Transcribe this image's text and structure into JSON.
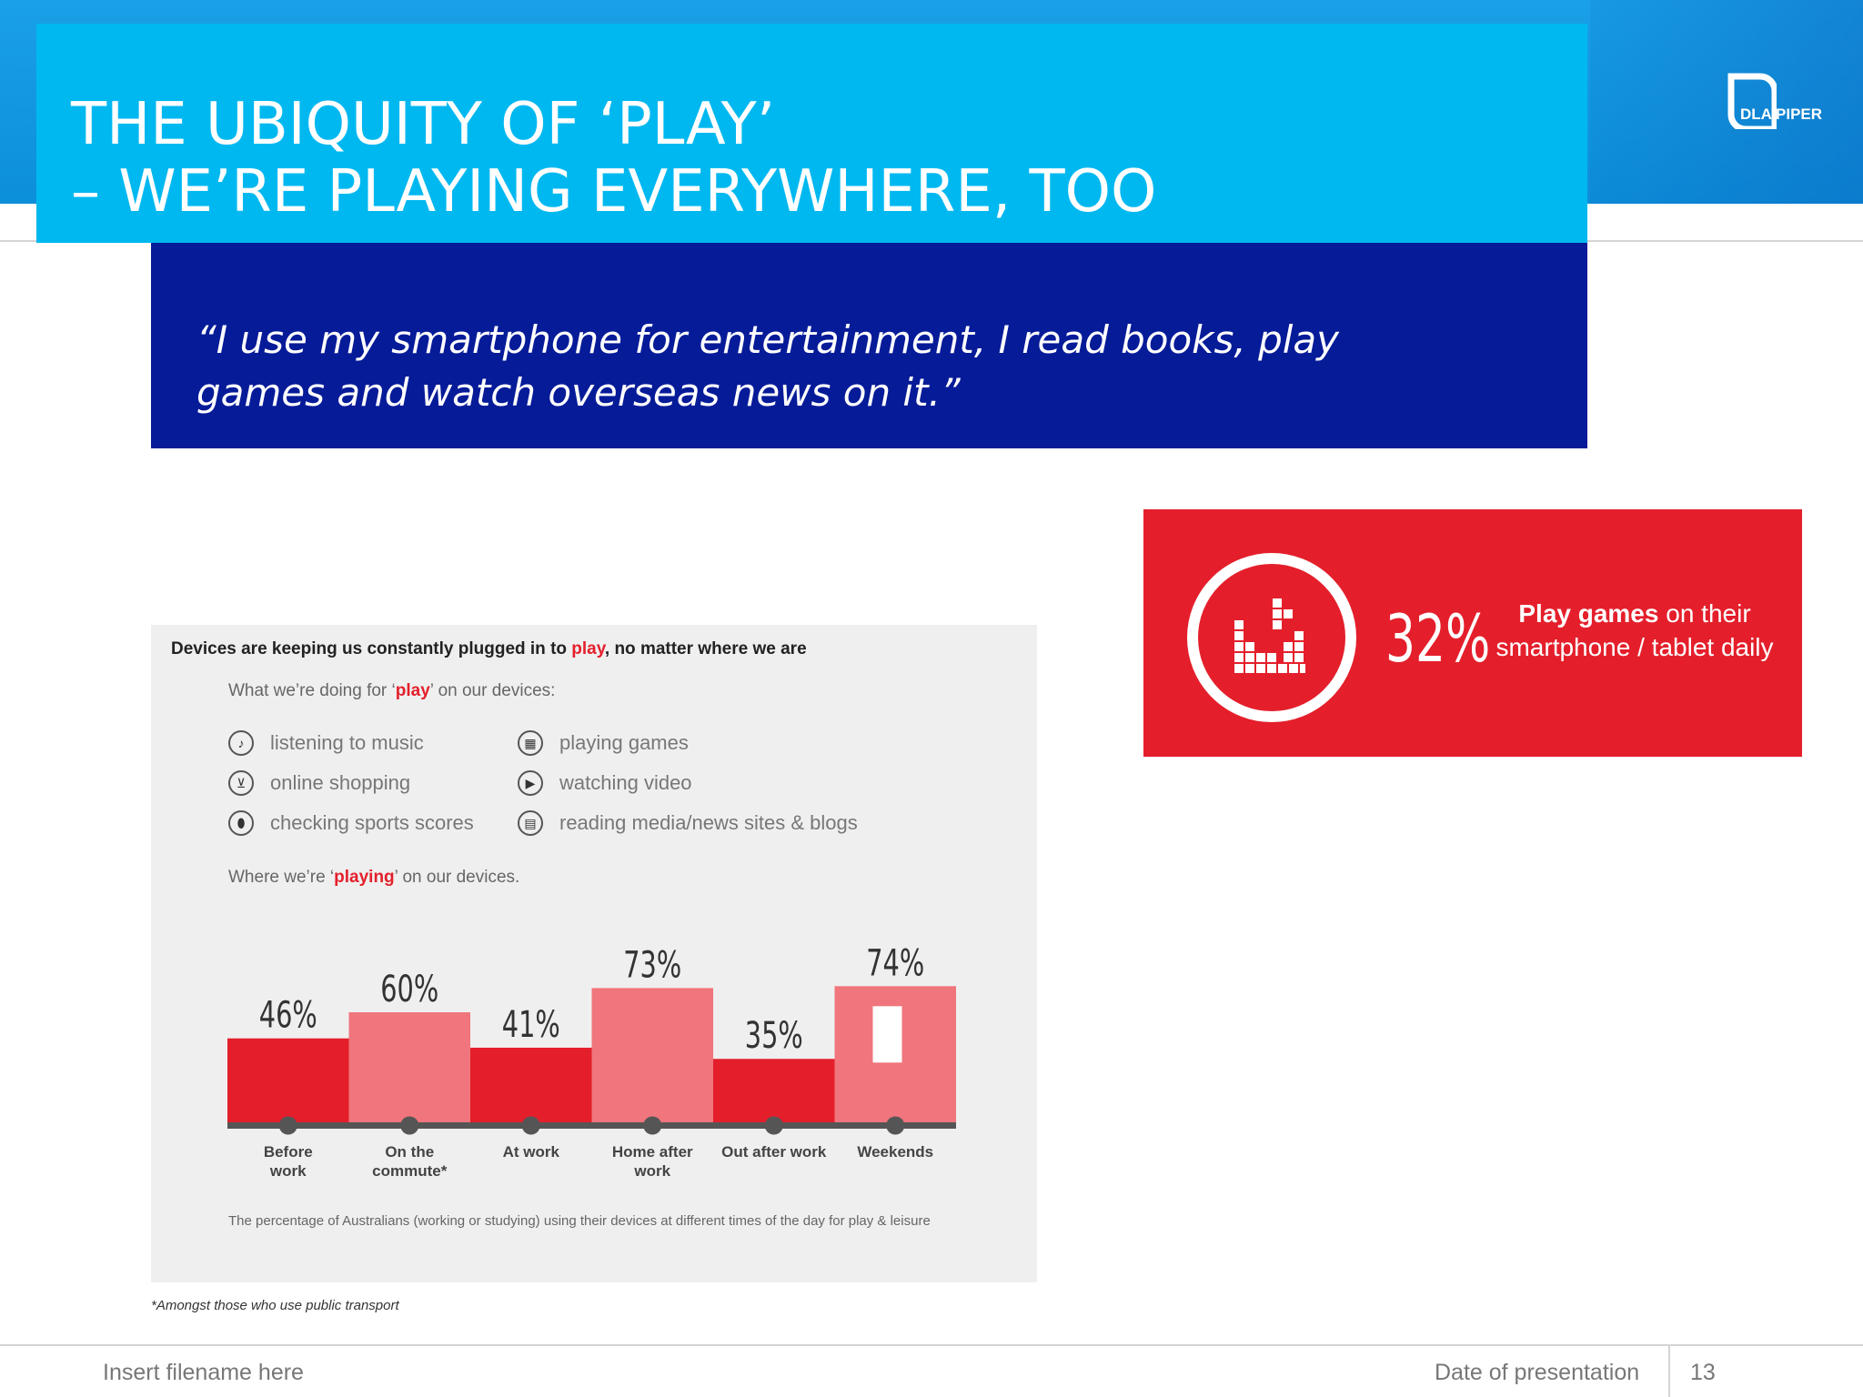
{
  "slide": {
    "title_line1": "THE UBIQUITY OF ‘PLAY’",
    "title_line2": "– WE’RE PLAYING EVERYWHERE, TOO",
    "logo_text": "DLA PIPER",
    "quote": "“I use my smartphone for entertainment, I read books, play games and watch overseas news on it.”",
    "stat": {
      "percent": "32%",
      "desc_bold": "Play games",
      "desc_rest": " on their smartphone / tablet daily"
    },
    "panel": {
      "heading_pre": "Devices are keeping us constantly plugged in to ",
      "heading_red": "play",
      "heading_post": ", no matter where we are",
      "doing_pre": "What we’re doing for ‘",
      "doing_red": "play",
      "doing_post": "’ on our devices:",
      "where_pre": "Where we’re ‘",
      "where_red": "playing",
      "where_post": "’ on our devices.",
      "activities": [
        {
          "label": "listening to music",
          "icon": "music-note-icon"
        },
        {
          "label": "online shopping",
          "icon": "shopping-cart-icon"
        },
        {
          "label": "checking sports scores",
          "icon": "football-icon"
        },
        {
          "label": "playing games",
          "icon": "game-icon"
        },
        {
          "label": "watching video",
          "icon": "play-icon"
        },
        {
          "label": "reading media/news sites & blogs",
          "icon": "news-icon"
        }
      ],
      "footnote": "The percentage of Australians (working or studying) using their devices at different times of the day for play & leisure"
    },
    "asterisk_note": "*Amongst those who use public transport",
    "footer": {
      "filename": "Insert filename here",
      "date": "Date of presentation",
      "page": "13"
    }
  },
  "chart_data": {
    "type": "bar",
    "title": "Where we’re ‘playing’ on our devices.",
    "categories": [
      "Before work",
      "On the commute*",
      "At work",
      "Home after work",
      "Out after work",
      "Weekends"
    ],
    "values": [
      46,
      60,
      41,
      73,
      35,
      74
    ],
    "value_labels": [
      "46%",
      "60%",
      "41%",
      "73%",
      "35%",
      "74%"
    ],
    "unit": "%",
    "ylim": [
      0,
      100
    ],
    "colors": [
      "#e41f2b",
      "#f0757c",
      "#e41f2b",
      "#f0757c",
      "#e41f2b",
      "#f0757c"
    ],
    "axis_color": "#555555"
  }
}
